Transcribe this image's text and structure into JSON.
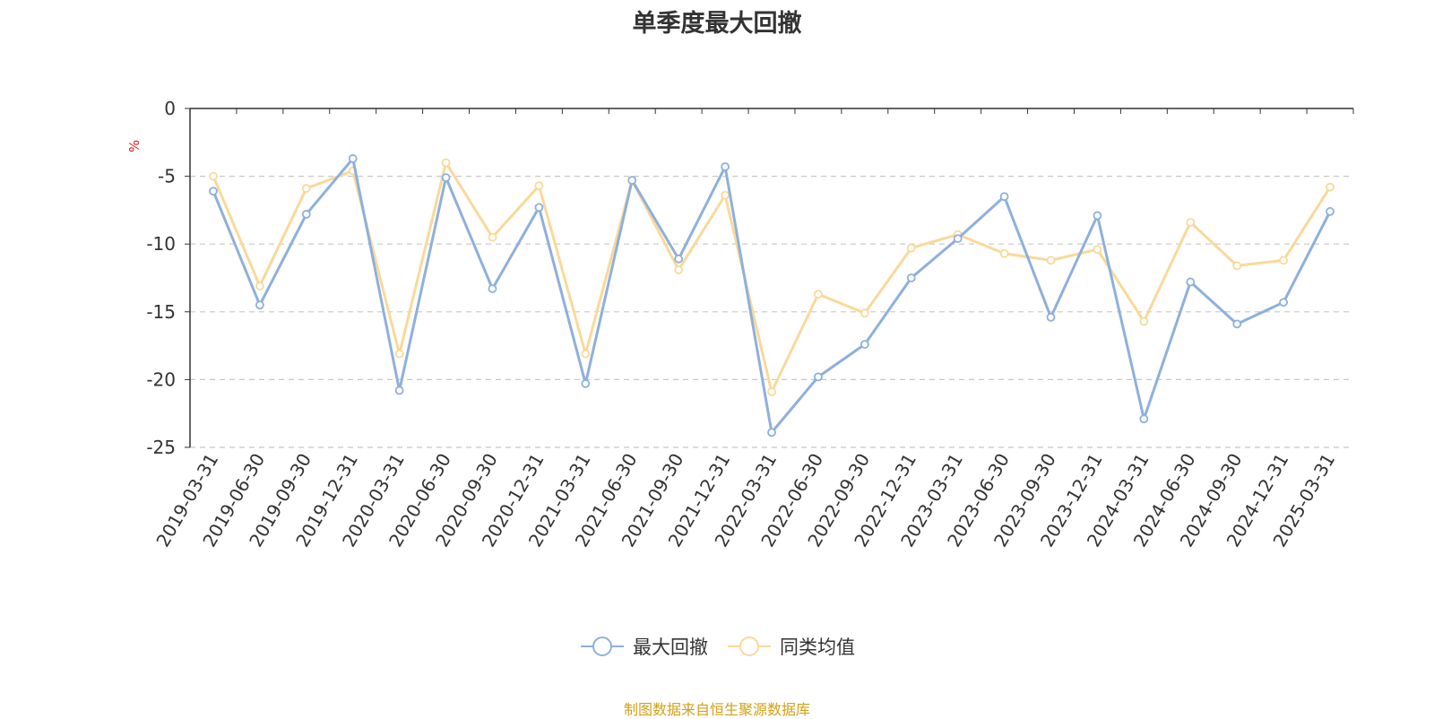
{
  "chart_data": {
    "type": "line",
    "title": "单季度最大回撤",
    "xlabel": "",
    "ylabel": "%",
    "ylim": [
      -25,
      0
    ],
    "yticks": [
      0,
      -5,
      -10,
      -15,
      -20,
      -25
    ],
    "grid": true,
    "legend_position": "bottom-center",
    "categories": [
      "2019-03-31",
      "2019-06-30",
      "2019-09-30",
      "2019-12-31",
      "2020-03-31",
      "2020-06-30",
      "2020-09-30",
      "2020-12-31",
      "2021-03-31",
      "2021-06-30",
      "2021-09-30",
      "2021-12-31",
      "2022-03-31",
      "2022-06-30",
      "2022-09-30",
      "2022-12-31",
      "2023-03-31",
      "2023-06-30",
      "2023-09-30",
      "2023-12-31",
      "2024-03-31",
      "2024-06-30",
      "2024-09-30",
      "2024-12-31",
      "2025-03-31"
    ],
    "series": [
      {
        "name": "最大回撤",
        "color": "#8eb0dc",
        "values": [
          -6.1,
          -14.5,
          -7.8,
          -3.7,
          -20.8,
          -5.1,
          -13.3,
          -7.3,
          -20.3,
          -5.3,
          -11.1,
          -4.3,
          -23.9,
          -19.8,
          -17.4,
          -12.5,
          -9.6,
          -6.5,
          -15.4,
          -7.9,
          -22.9,
          -12.8,
          -15.9,
          -14.3,
          -7.6
        ]
      },
      {
        "name": "同类均值",
        "color": "#f9d99a",
        "values": [
          -5.0,
          -13.1,
          -5.9,
          -4.6,
          -18.1,
          -4.0,
          -9.5,
          -5.7,
          -18.1,
          -5.3,
          -11.9,
          -6.4,
          -20.9,
          -13.7,
          -15.1,
          -10.3,
          -9.3,
          -10.7,
          -11.2,
          -10.4,
          -15.7,
          -8.4,
          -11.6,
          -11.2,
          -5.8
        ]
      }
    ]
  },
  "source_note": "制图数据来自恒生聚源数据库"
}
